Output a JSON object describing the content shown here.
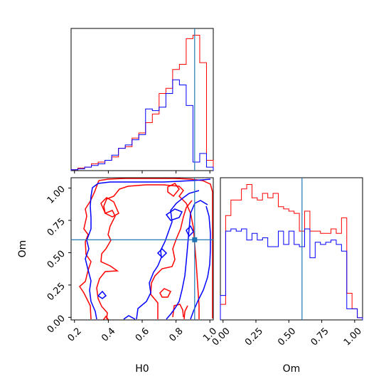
{
  "colors": {
    "series_a": "#ff0000",
    "series_b": "#0000ff",
    "truth": "#1f77b4",
    "axes": "#000000"
  },
  "chart_data": [
    {
      "type": "histogram",
      "panel": "top-left",
      "parameter": "H0",
      "xlim": [
        0.18,
        1.02
      ],
      "bin_edges": [
        0.18,
        0.22,
        0.26,
        0.3,
        0.34,
        0.38,
        0.42,
        0.46,
        0.5,
        0.54,
        0.58,
        0.62,
        0.66,
        0.7,
        0.74,
        0.78,
        0.82,
        0.86,
        0.9,
        0.94,
        0.98,
        1.02
      ],
      "series": [
        {
          "color": "#ff0000",
          "counts": [
            0.5,
            1.5,
            2,
            4,
            5,
            6,
            8,
            13,
            14,
            19,
            22,
            28,
            33,
            45,
            48,
            59,
            62,
            77,
            79,
            63,
            6
          ]
        },
        {
          "color": "#0000ff",
          "counts": [
            0.5,
            1,
            2,
            3,
            4,
            6,
            9,
            13,
            15,
            18,
            21,
            36,
            35,
            37,
            45,
            53,
            50,
            38,
            5,
            10,
            2
          ]
        }
      ],
      "truth_x": 0.91,
      "show_y_ticks": false
    },
    {
      "type": "contour",
      "panel": "bottom-left",
      "xlabel": "H0",
      "ylabel": "Om",
      "xlim": [
        0.18,
        1.02
      ],
      "ylim": [
        -0.02,
        1.08
      ],
      "x_ticks": [
        "0.2",
        "0.4",
        "0.6",
        "0.8",
        "1.0"
      ],
      "y_ticks": [
        "0.00",
        "0.25",
        "0.50",
        "0.75",
        "1.00"
      ],
      "truth_point": [
        0.91,
        0.6
      ]
    },
    {
      "type": "histogram",
      "panel": "bottom-right",
      "xlabel": "Om",
      "xlim": [
        -0.02,
        1.06
      ],
      "x_ticks": [
        "0.00",
        "0.25",
        "0.50",
        "0.75",
        "1.00"
      ],
      "bin_edges": [
        -0.02,
        0.02,
        0.06,
        0.1,
        0.14,
        0.18,
        0.22,
        0.26,
        0.3,
        0.34,
        0.38,
        0.42,
        0.46,
        0.5,
        0.54,
        0.58,
        0.62,
        0.66,
        0.7,
        0.74,
        0.78,
        0.82,
        0.86,
        0.9,
        0.94,
        0.98,
        1.02,
        1.06
      ],
      "series": [
        {
          "color": "#ff0000",
          "counts": [
            0.14,
            0.94,
            1.08,
            1.08,
            1.18,
            1.22,
            1.1,
            1.08,
            1.14,
            1.1,
            1.14,
            1.02,
            1.0,
            0.98,
            0.96,
            0.8,
            0.98,
            0.8,
            0.8,
            0.78,
            0.78,
            0.82,
            0.78,
            0.92,
            0.24,
            0.1,
            0.02
          ]
        },
        {
          "color": "#0000ff",
          "counts": [
            0.22,
            0.8,
            0.82,
            0.8,
            0.82,
            0.72,
            0.78,
            0.72,
            0.74,
            0.66,
            0.66,
            0.8,
            0.68,
            0.8,
            0.68,
            0.66,
            0.82,
            0.56,
            0.7,
            0.68,
            0.7,
            0.72,
            0.68,
            0.62,
            0.1,
            0.1,
            0.02
          ]
        }
      ],
      "truth_x": 0.6,
      "show_y_ticks": false
    }
  ]
}
